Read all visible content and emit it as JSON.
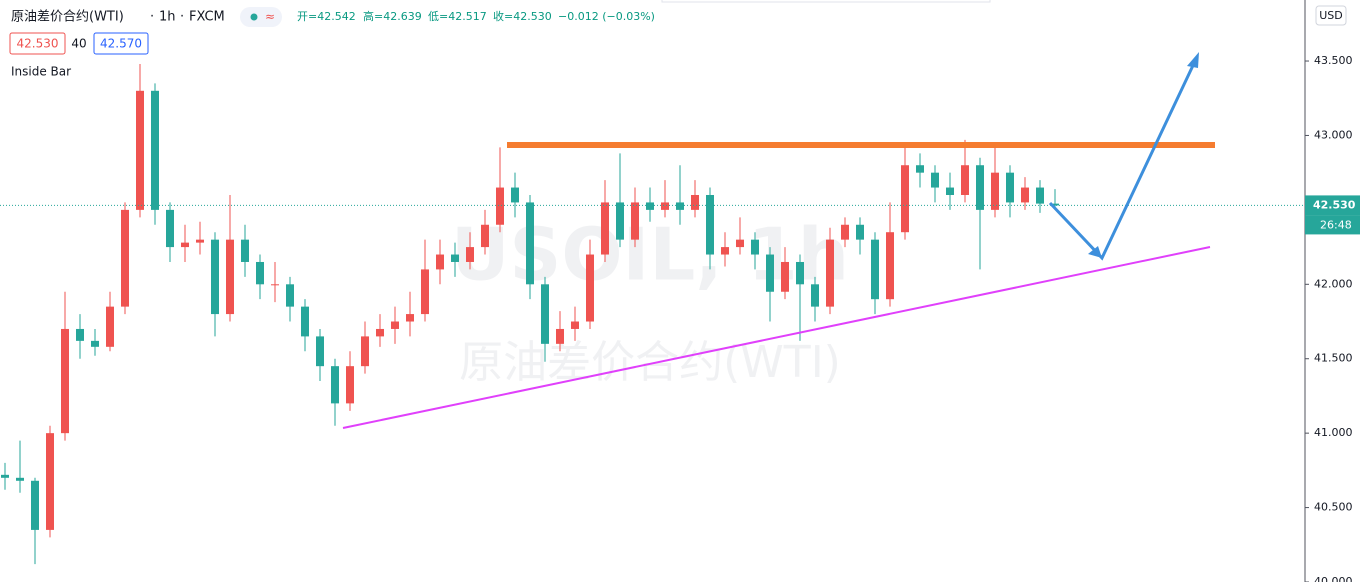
{
  "chart_data": {
    "type": "candlestick",
    "title": "原油差价合约(WTI)",
    "interval": "1h",
    "source": "FXCM",
    "ohlc_legend": [
      "开=42.542",
      "高=42.639",
      "低=42.517",
      "收=42.530",
      "−0.012 (−0.03%)"
    ],
    "badges": [
      "42.530",
      "40",
      "42.570"
    ],
    "indicator": "Inside Bar",
    "currency": "USD",
    "watermark": [
      "USOIL, 1h",
      "原油差价合约(WTI)"
    ],
    "up_color": "#ef5350",
    "down_color": "#26a69a",
    "ylim": [
      40.0,
      43.91
    ],
    "yticks": [
      {
        "value": 43.5,
        "label": "43.500"
      },
      {
        "value": 43.0,
        "label": "43.000"
      },
      {
        "value": 42.5,
        "label": "42.500"
      },
      {
        "value": 42.0,
        "label": "42.000"
      },
      {
        "value": 41.5,
        "label": "41.500"
      },
      {
        "value": 41.0,
        "label": "41.000"
      },
      {
        "value": 40.5,
        "label": "40.500"
      },
      {
        "value": 40.0,
        "label": "40.000"
      }
    ],
    "last_price": {
      "value": 42.53,
      "label": "42.530"
    },
    "countdown": "26:48",
    "open": [
      40.72,
      40.7,
      40.68,
      40.35,
      41.0,
      41.7,
      41.62,
      41.58,
      41.85,
      42.5,
      43.3,
      42.5,
      42.25,
      42.28,
      42.3,
      41.8,
      42.3,
      42.15,
      42.0,
      42.0,
      41.85,
      41.65,
      41.45,
      41.2,
      41.45,
      41.65,
      41.7,
      41.75,
      41.8,
      42.1,
      42.2,
      42.15,
      42.25,
      42.4,
      42.65,
      42.55,
      42.0,
      41.6,
      41.7,
      41.75,
      42.2,
      42.55,
      42.3,
      42.55,
      42.5,
      42.55,
      42.5,
      42.6,
      42.2,
      42.25,
      42.3,
      42.2,
      41.95,
      42.15,
      42.0,
      41.85,
      42.3,
      42.4,
      42.3,
      41.9,
      42.35,
      42.8,
      42.75,
      42.65,
      42.6,
      42.8,
      42.5,
      42.75,
      42.55,
      42.65,
      42.542
    ],
    "high": [
      40.8,
      40.95,
      40.7,
      41.05,
      41.95,
      41.8,
      41.7,
      41.95,
      42.55,
      43.48,
      43.35,
      42.55,
      42.4,
      42.42,
      42.35,
      42.6,
      42.4,
      42.2,
      42.15,
      42.05,
      41.9,
      41.7,
      41.5,
      41.55,
      41.75,
      41.8,
      41.85,
      41.95,
      42.3,
      42.3,
      42.28,
      42.35,
      42.5,
      42.92,
      42.75,
      42.6,
      42.05,
      41.82,
      41.85,
      42.3,
      42.7,
      42.88,
      42.65,
      42.65,
      42.7,
      42.8,
      42.7,
      42.65,
      42.35,
      42.45,
      42.35,
      42.25,
      42.25,
      42.2,
      42.05,
      42.38,
      42.45,
      42.45,
      42.35,
      42.55,
      42.92,
      42.88,
      42.8,
      42.75,
      42.97,
      42.85,
      42.92,
      42.8,
      42.72,
      42.7,
      42.639
    ],
    "low": [
      40.62,
      40.6,
      40.12,
      40.3,
      40.95,
      41.5,
      41.52,
      41.55,
      41.8,
      42.45,
      42.4,
      42.15,
      42.15,
      42.2,
      41.65,
      41.75,
      42.05,
      41.9,
      41.88,
      41.75,
      41.55,
      41.35,
      41.05,
      41.15,
      41.4,
      41.58,
      41.6,
      41.65,
      41.75,
      42.0,
      42.05,
      42.1,
      42.2,
      42.35,
      42.45,
      41.9,
      41.48,
      41.55,
      41.62,
      41.7,
      42.15,
      42.25,
      42.25,
      42.42,
      42.45,
      42.4,
      42.45,
      42.1,
      42.12,
      42.2,
      42.1,
      41.75,
      41.9,
      41.62,
      41.75,
      41.8,
      42.25,
      42.2,
      41.8,
      41.85,
      42.3,
      42.65,
      42.55,
      42.5,
      42.55,
      42.1,
      42.45,
      42.45,
      42.5,
      42.48,
      42.517
    ],
    "close": [
      40.7,
      40.68,
      40.35,
      41.0,
      41.7,
      41.62,
      41.58,
      41.85,
      42.5,
      43.3,
      42.5,
      42.25,
      42.28,
      42.3,
      41.8,
      42.3,
      42.15,
      42.0,
      42.0,
      41.85,
      41.65,
      41.45,
      41.2,
      41.45,
      41.65,
      41.7,
      41.75,
      41.8,
      42.1,
      42.2,
      42.15,
      42.25,
      42.4,
      42.65,
      42.55,
      42.0,
      41.6,
      41.7,
      41.75,
      42.2,
      42.55,
      42.3,
      42.55,
      42.5,
      42.55,
      42.5,
      42.6,
      42.2,
      42.25,
      42.3,
      42.2,
      41.95,
      42.15,
      42.0,
      41.85,
      42.3,
      42.4,
      42.3,
      41.9,
      42.35,
      42.8,
      42.75,
      42.65,
      42.6,
      42.8,
      42.5,
      42.75,
      42.55,
      42.65,
      42.542,
      42.53
    ]
  }
}
